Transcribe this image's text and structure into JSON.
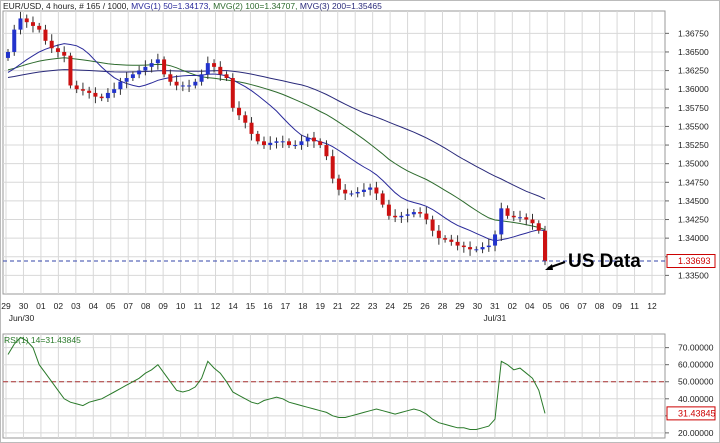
{
  "header": {
    "symbol": "EUR/USD",
    "info": ", 4 hours, # 165 / 1000,",
    "mvg1": "MVG(1) 50=1.34173",
    "mvg2": "MVG(2) 100=1.34707",
    "mvg3": "MVG(3) 200=1.35465"
  },
  "annotation": {
    "text": "US Data"
  },
  "colors": {
    "up": "#2233cc",
    "down": "#cc1111",
    "mvg1": "#2a2a9a",
    "mvg2": "#2e6b2e",
    "mvg3": "#2a2a7a",
    "rsi": "#2a7a2a",
    "price_marker": "#cc0000",
    "grid": "#d8d8d8"
  },
  "chart_data": [
    {
      "type": "candlestick",
      "title": "EUR/USD , 4 hours, # 165 / 1000",
      "ylim": [
        1.3325,
        1.3705
      ],
      "y_ticks": [
        "1.36750",
        "1.36500",
        "1.36250",
        "1.36000",
        "1.35750",
        "1.35500",
        "1.35250",
        "1.35000",
        "1.34750",
        "1.34500",
        "1.34250",
        "1.34000",
        "1.33750",
        "1.33500"
      ],
      "current_price": "1.33693",
      "x_tick_labels": [
        "29",
        "30",
        "01",
        "02",
        "03",
        "04",
        "05",
        "07",
        "08",
        "09",
        "10",
        "11",
        "12",
        "14",
        "15",
        "16",
        "17",
        "18",
        "19",
        "21",
        "22",
        "23",
        "24",
        "25",
        "26",
        "28",
        "29",
        "30",
        "31",
        "02",
        "04",
        "05",
        "06",
        "07",
        "08",
        "09",
        "11",
        "12"
      ],
      "x_month_labels": [
        "Jun/30",
        "Jul/31"
      ],
      "closes": [
        1.365,
        1.368,
        1.3695,
        1.369,
        1.3685,
        1.368,
        1.3665,
        1.3655,
        1.365,
        1.3645,
        1.3605,
        1.36,
        1.3598,
        1.3595,
        1.359,
        1.3588,
        1.3595,
        1.36,
        1.361,
        1.3615,
        1.362,
        1.3625,
        1.363,
        1.3635,
        1.364,
        1.362,
        1.361,
        1.3605,
        1.3605,
        1.3605,
        1.361,
        1.362,
        1.3635,
        1.363,
        1.362,
        1.3615,
        1.3575,
        1.3565,
        1.3555,
        1.354,
        1.353,
        1.3525,
        1.3528,
        1.353,
        1.353,
        1.3525,
        1.3525,
        1.353,
        1.3535,
        1.353,
        1.3525,
        1.351,
        1.348,
        1.3465,
        1.346,
        1.346,
        1.3462,
        1.3465,
        1.3468,
        1.346,
        1.3445,
        1.343,
        1.3428,
        1.343,
        1.3432,
        1.3435,
        1.3433,
        1.3425,
        1.341,
        1.34,
        1.3398,
        1.3395,
        1.339,
        1.3388,
        1.3385,
        1.3385,
        1.3388,
        1.339,
        1.3405,
        1.344,
        1.343,
        1.3428,
        1.3428,
        1.3425,
        1.342,
        1.341,
        1.3369
      ],
      "series": [
        {
          "name": "MVG(1) 50",
          "last": 1.34173
        },
        {
          "name": "MVG(2) 100",
          "last": 1.34707
        },
        {
          "name": "MVG(3) 200",
          "last": 1.35465
        }
      ]
    },
    {
      "type": "line",
      "title": "RSI(1) 14=31.43845",
      "ylim": [
        17,
        78
      ],
      "y_ticks": [
        "70.00000",
        "60.00000",
        "50.00000",
        "40.00000",
        "30.00000",
        "20.00000"
      ],
      "reference_line": 50,
      "current_value": "31.43845",
      "values": [
        66,
        72,
        76,
        74,
        70,
        60,
        55,
        50,
        45,
        40,
        38,
        37,
        36,
        38,
        39,
        40,
        42,
        44,
        46,
        48,
        50,
        52,
        55,
        57,
        60,
        55,
        50,
        45,
        44,
        45,
        47,
        52,
        62,
        58,
        55,
        50,
        44,
        42,
        40,
        38,
        37,
        39,
        40,
        41,
        40,
        38,
        37,
        36,
        35,
        34,
        33,
        32,
        30,
        29,
        29,
        30,
        31,
        32,
        33,
        34,
        33,
        32,
        31,
        32,
        33,
        34,
        33,
        31,
        28,
        26,
        25,
        24,
        23,
        23,
        22,
        22,
        23,
        24,
        28,
        62,
        60,
        57,
        58,
        55,
        52,
        45,
        31.4
      ]
    }
  ]
}
